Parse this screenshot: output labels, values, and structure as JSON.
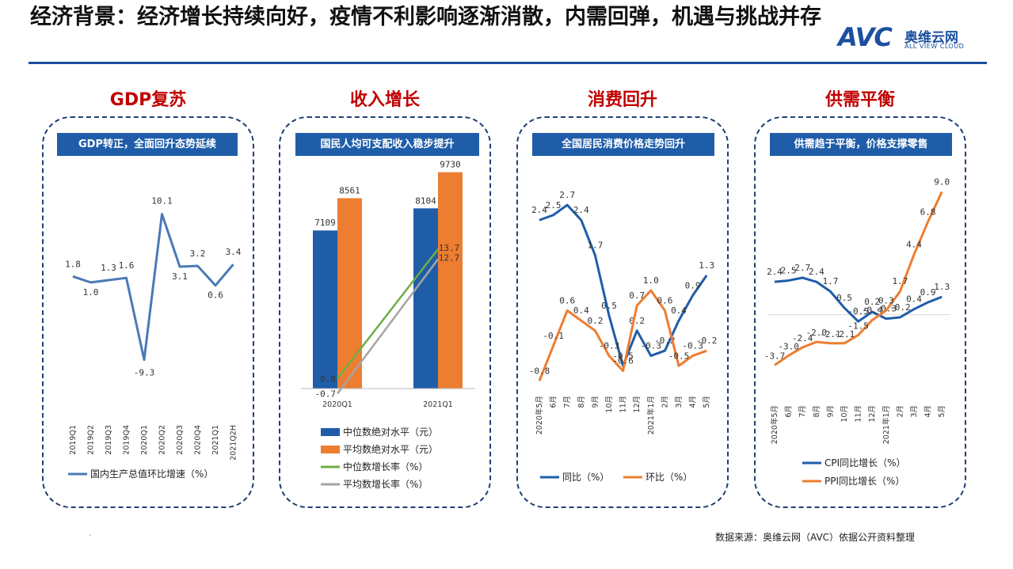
{
  "title": "经济背景：经济增长持续向好，疫情不利影响逐渐消散，内需回弹，机遇与挑战并存",
  "logo": {
    "mark": "AVC",
    "name_cn": "奥维云网",
    "name_en": "ALL VIEW CLOUD"
  },
  "colors": {
    "blue": "#1f5da9",
    "orange": "#ed7d31",
    "green": "#70ad47",
    "gray": "#a5a5a5",
    "line_blue": "#4a7ab5",
    "red_title": "#c00000"
  },
  "sections": [
    {
      "title": "GDP复苏",
      "banner": "GDP转正，全面回升态势延续"
    },
    {
      "title": "收入增长",
      "banner": "国民人均可支配收入稳步提升"
    },
    {
      "title": "消费回升",
      "banner": "全国居民消费价格走势回升"
    },
    {
      "title": "供需平衡",
      "banner": "供需趋于平衡，价格支撑零售"
    }
  ],
  "source": "数据来源：奥维云网（AVC）依据公开资料整理",
  "footer_mark": "-",
  "chart_data": [
    {
      "type": "line",
      "categories": [
        "2019Q1",
        "2019Q2",
        "2019Q3",
        "2019Q4",
        "2020Q1",
        "2020Q2",
        "2020Q3",
        "2020Q4",
        "2021Q1",
        "2021Q2H"
      ],
      "series": [
        {
          "name": "国内生产总值环比增速（%）",
          "values": [
            1.8,
            1.0,
            1.3,
            1.6,
            -9.3,
            10.1,
            3.1,
            3.2,
            0.6,
            3.4
          ],
          "labels": [
            "1.8",
            "1.0",
            "1.3",
            "1.6",
            "-9.3",
            "10.1",
            "3.1",
            "3.2",
            "0.6",
            "3.4"
          ]
        }
      ],
      "ylim": [
        -10.5,
        11
      ]
    },
    {
      "type": "bar",
      "categories": [
        "2020Q1",
        "2021Q1"
      ],
      "series": [
        {
          "name": "中位数绝对水平（元）",
          "kind": "bar",
          "values": [
            7109,
            8104
          ],
          "labels": [
            "7109",
            "8104"
          ]
        },
        {
          "name": "平均数绝对水平（元）",
          "kind": "bar",
          "values": [
            8561,
            9730
          ],
          "labels": [
            "8561",
            "9730"
          ]
        },
        {
          "name": "中位数增长率（%）",
          "kind": "line",
          "values": [
            0.8,
            13.7
          ],
          "labels": [
            "0.8",
            "13.7"
          ]
        },
        {
          "name": "平均数增长率（%）",
          "kind": "line",
          "values": [
            -0.7,
            12.7
          ],
          "labels": [
            "-0.7",
            "12.7"
          ]
        }
      ],
      "ylim_bar": [
        0,
        10000
      ],
      "ylim_line": [
        -0.9,
        14.4
      ]
    },
    {
      "type": "line",
      "categories": [
        "2020年5月",
        "6月",
        "7月",
        "8月",
        "9月",
        "10月",
        "11月",
        "12月",
        "2021年1月",
        "2月",
        "3月",
        "4月",
        "5月"
      ],
      "series": [
        {
          "name": "同比（%）",
          "values": [
            2.4,
            2.5,
            2.7,
            2.4,
            1.7,
            0.5,
            -0.5,
            0.2,
            -0.3,
            -0.2,
            0.4,
            0.9,
            1.3
          ],
          "labels": [
            "2.4",
            "2.5",
            "2.7",
            "2.4",
            "1.7",
            "0.5",
            "-0.5",
            "0.2",
            "-0.3",
            "-0.2",
            "0.4",
            "0.9",
            "1.3"
          ]
        },
        {
          "name": "环比（%）",
          "values": [
            -0.8,
            -0.1,
            0.6,
            0.4,
            0.2,
            -0.3,
            -0.6,
            0.7,
            1.0,
            0.6,
            -0.5,
            -0.3,
            -0.2
          ],
          "labels": [
            "-0.8",
            "-0.1",
            "0.6",
            "0.4",
            "0.2",
            "-0.3",
            "-0.6",
            "0.7",
            "1.0",
            "0.6",
            "-0.5",
            "-0.3",
            "-0.2"
          ]
        }
      ],
      "ylim": [
        -1.0,
        3.0
      ]
    },
    {
      "type": "line",
      "categories": [
        "2020年5月",
        "6月",
        "7月",
        "8月",
        "9月",
        "10月",
        "11月",
        "12月",
        "2021年1月",
        "2月",
        "3月",
        "4月",
        "5月"
      ],
      "series": [
        {
          "name": "CPI同比增长（%）",
          "values": [
            2.4,
            2.5,
            2.7,
            2.4,
            1.7,
            0.5,
            -0.5,
            0.2,
            -0.3,
            -0.2,
            0.4,
            0.9,
            1.3
          ],
          "labels": [
            "2.4",
            "2.5",
            "2.7",
            "2.4",
            "1.7",
            "0.5",
            "-0.5",
            "0.2",
            "-0.3",
            "-0.2",
            "0.4",
            "0.9",
            "1.3"
          ]
        },
        {
          "name": "PPI同比增长（%）",
          "values": [
            -3.7,
            -3.0,
            -2.4,
            -2.0,
            -2.1,
            -2.1,
            -1.5,
            -0.4,
            0.3,
            1.7,
            4.4,
            6.8,
            9.0
          ],
          "labels": [
            "-3.7",
            "-3.0",
            "-2.4",
            "-2.0",
            "-2.1",
            "-2.1",
            "-1.5",
            "-0.4",
            "0.3",
            "1.7",
            "4.4",
            "6.8",
            "9.0"
          ]
        }
      ],
      "ylim": [
        -4.2,
        9.6
      ],
      "zero_line": true
    }
  ]
}
